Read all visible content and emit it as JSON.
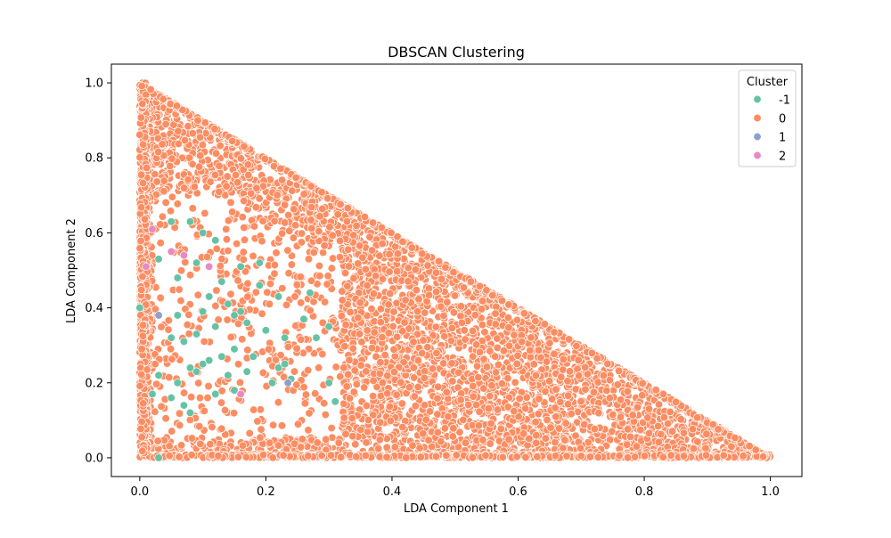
{
  "chart_data": {
    "type": "scatter",
    "title": "DBSCAN Clustering",
    "xlabel": "LDA Component 1",
    "ylabel": "LDA Component 2",
    "xlim": [
      -0.045,
      1.05
    ],
    "ylim": [
      -0.05,
      1.05
    ],
    "x_ticks": [
      0.0,
      0.2,
      0.4,
      0.6,
      0.8,
      1.0
    ],
    "y_ticks": [
      0.0,
      0.2,
      0.4,
      0.6,
      0.8,
      1.0
    ],
    "x_tick_labels": [
      "0.0",
      "0.2",
      "0.4",
      "0.6",
      "0.8",
      "1.0"
    ],
    "y_tick_labels": [
      "0.0",
      "0.2",
      "0.4",
      "0.6",
      "0.8",
      "1.0"
    ],
    "grid": false,
    "legend": {
      "title": "Cluster",
      "placement": "top-right",
      "entries": [
        {
          "label": "-1",
          "color": "#66c2a5"
        },
        {
          "label": "0",
          "color": "#fc8d62"
        },
        {
          "label": "1",
          "color": "#8da0cb"
        },
        {
          "label": "2",
          "color": "#e78ac3"
        }
      ]
    },
    "series": [
      {
        "name": "-1",
        "color": "#66c2a5",
        "points": [
          [
            0.0,
            0.4
          ],
          [
            0.03,
            0.53
          ],
          [
            0.05,
            0.63
          ],
          [
            0.08,
            0.63
          ],
          [
            0.1,
            0.6
          ],
          [
            0.12,
            0.58
          ],
          [
            0.06,
            0.48
          ],
          [
            0.09,
            0.52
          ],
          [
            0.13,
            0.47
          ],
          [
            0.16,
            0.51
          ],
          [
            0.19,
            0.52
          ],
          [
            0.14,
            0.41
          ],
          [
            0.16,
            0.39
          ],
          [
            0.06,
            0.38
          ],
          [
            0.1,
            0.39
          ],
          [
            0.07,
            0.31
          ],
          [
            0.09,
            0.33
          ],
          [
            0.12,
            0.35
          ],
          [
            0.15,
            0.38
          ],
          [
            0.17,
            0.36
          ],
          [
            0.2,
            0.34
          ],
          [
            0.23,
            0.32
          ],
          [
            0.26,
            0.37
          ],
          [
            0.28,
            0.32
          ],
          [
            0.3,
            0.35
          ],
          [
            0.13,
            0.27
          ],
          [
            0.15,
            0.29
          ],
          [
            0.18,
            0.27
          ],
          [
            0.11,
            0.26
          ],
          [
            0.09,
            0.23
          ],
          [
            0.08,
            0.24
          ],
          [
            0.1,
            0.25
          ],
          [
            0.14,
            0.22
          ],
          [
            0.17,
            0.23
          ],
          [
            0.22,
            0.24
          ],
          [
            0.21,
            0.2
          ],
          [
            0.24,
            0.21
          ],
          [
            0.23,
            0.25
          ],
          [
            0.06,
            0.2
          ],
          [
            0.03,
            0.22
          ],
          [
            0.02,
            0.17
          ],
          [
            0.05,
            0.16
          ],
          [
            0.07,
            0.14
          ],
          [
            0.12,
            0.17
          ],
          [
            0.15,
            0.18
          ],
          [
            0.08,
            0.12
          ],
          [
            0.3,
            0.2
          ],
          [
            0.31,
            0.15
          ],
          [
            0.03,
            0.0
          ],
          [
            0.27,
            0.44
          ],
          [
            0.22,
            0.43
          ],
          [
            0.05,
            0.32
          ],
          [
            0.19,
            0.46
          ],
          [
            0.11,
            0.43
          ]
        ]
      },
      {
        "name": "0",
        "color": "#fc8d62",
        "points": []
      },
      {
        "name": "1",
        "color": "#8da0cb",
        "points": [
          [
            0.235,
            0.2
          ],
          [
            0.16,
            0.17
          ],
          [
            0.03,
            0.38
          ]
        ]
      },
      {
        "name": "2",
        "color": "#e78ac3",
        "points": [
          [
            0.02,
            0.61
          ],
          [
            0.01,
            0.51
          ],
          [
            0.05,
            0.55
          ],
          [
            0.11,
            0.51
          ],
          [
            0.16,
            0.17
          ],
          [
            0.07,
            0.54
          ]
        ]
      }
    ]
  }
}
